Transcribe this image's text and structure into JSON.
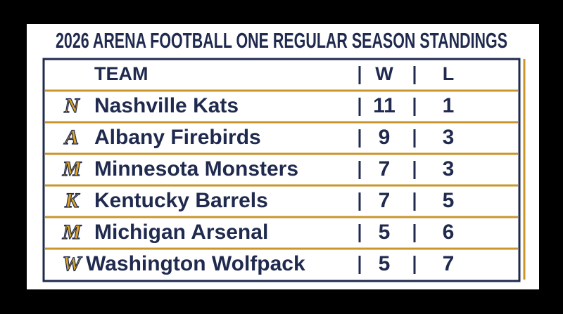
{
  "title": "2026 ARENA FOOTBALL ONE REGULAR SEASON STANDINGS",
  "table": {
    "header": [
      "TEAM",
      "W",
      "L"
    ],
    "rows": [
      {
        "logo": "N",
        "team": "Nashville Kats",
        "w": 11,
        "l": 1
      },
      {
        "logo": "A",
        "team": "Albany Firebirds",
        "w": 9,
        "l": 3
      },
      {
        "logo": "M",
        "team": "Minnesota Monsters",
        "w": 7,
        "l": 3
      },
      {
        "logo": "K",
        "team": "Kentucky Barrels",
        "w": 7,
        "l": 5
      },
      {
        "logo": "M",
        "team": "Michigan Arsenal",
        "w": 5,
        "l": 6
      },
      {
        "logo": "W",
        "team": "Washington Wolfpack",
        "w": 5,
        "l": 7
      }
    ]
  }
}
